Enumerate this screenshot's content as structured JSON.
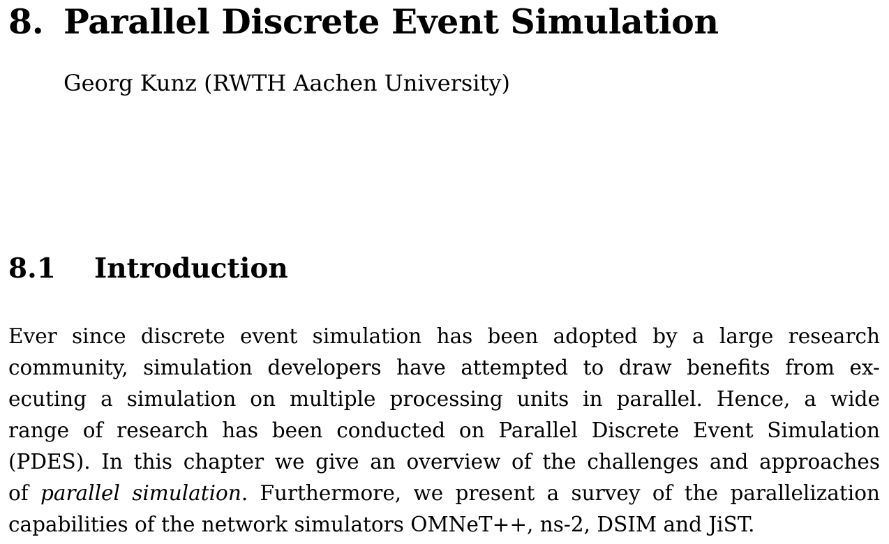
{
  "chapter": {
    "number": "8.",
    "title": "Parallel Discrete Event Simulation"
  },
  "author": "Georg Kunz (RWTH Aachen University)",
  "section": {
    "number": "8.1",
    "title": "Introduction"
  },
  "paragraph": {
    "line1": "Ever since discrete event simulation has been adopted by a large research",
    "line2": "community, simulation developers have attempted to draw benefits from ex-",
    "line3": "ecuting a simulation on multiple processing units in parallel. Hence, a wide",
    "line4": "range of research has been conducted on Parallel Discrete Event Simulation",
    "line5": "(PDES). In this chapter we give an overview of the challenges and approaches",
    "line6_prefix": "of",
    "line6_emphasis": "parallel simulation",
    "line6_suffix": ". Furthermore, we present a survey of the parallelization",
    "line7": "capabilities of the network simulators OMNeT++, ns-2, DSIM and JiST."
  }
}
